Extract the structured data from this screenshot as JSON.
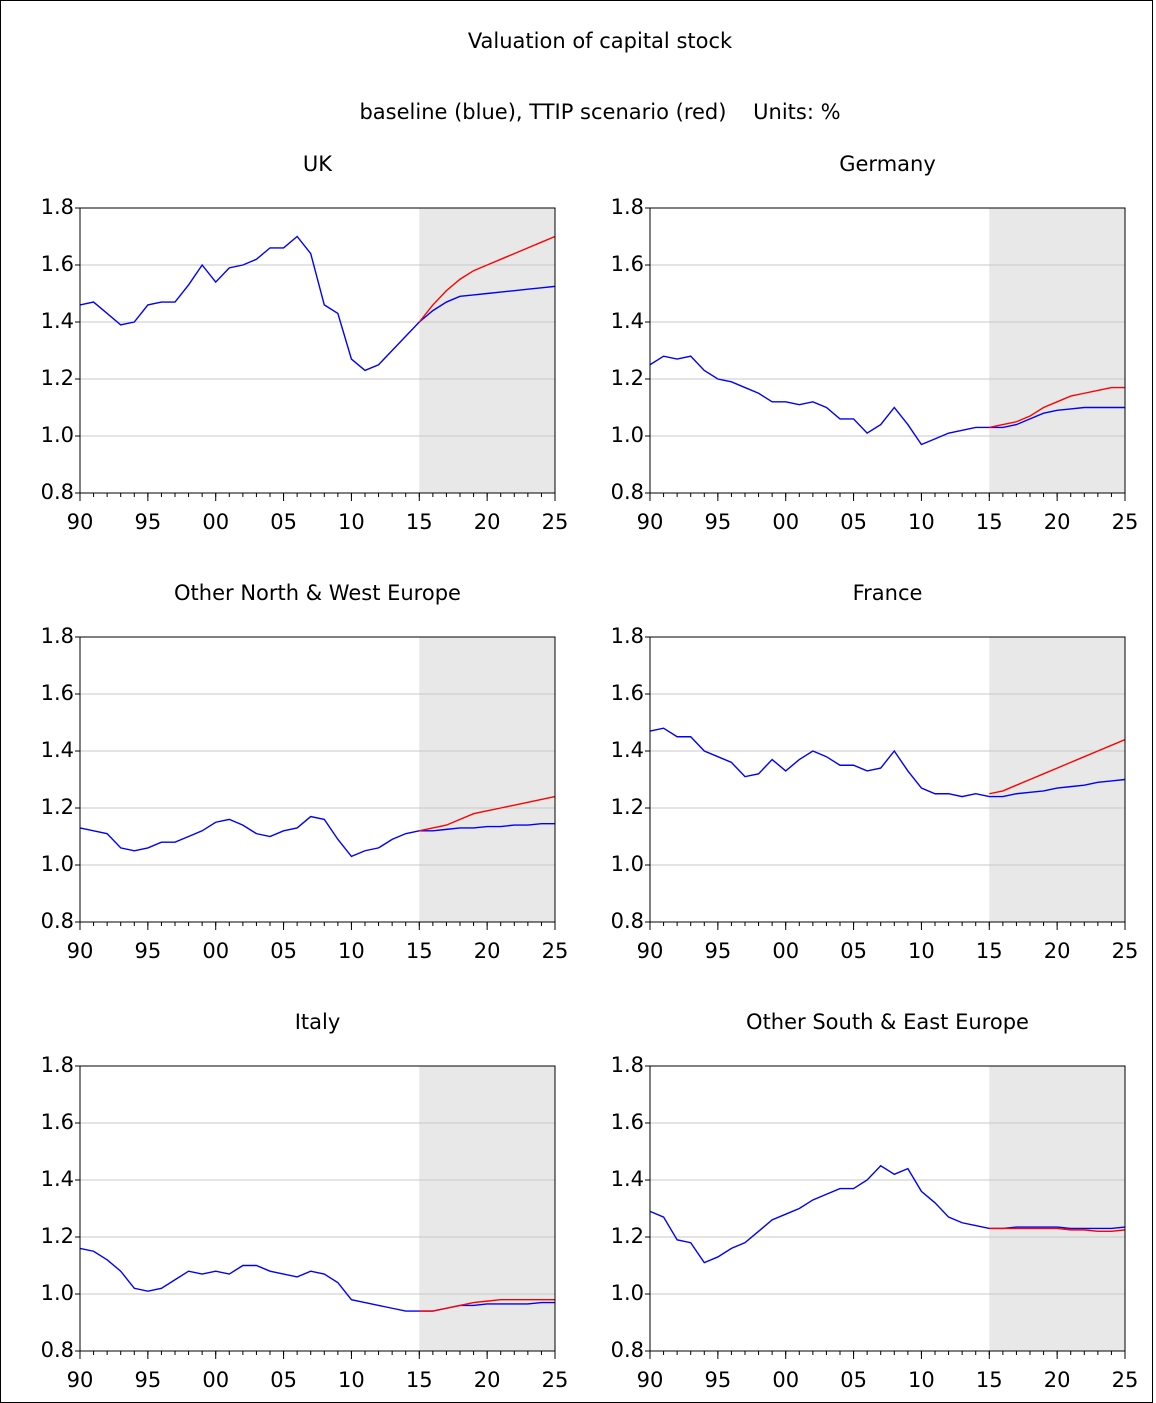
{
  "title": "Valuation of capital stock",
  "subtitle": "baseline (blue), TTIP scenario (red)    Units: %",
  "chart_data": [
    {
      "type": "line",
      "title": "UK",
      "x": [
        1990,
        1991,
        1992,
        1993,
        1994,
        1995,
        1996,
        1997,
        1998,
        1999,
        2000,
        2001,
        2002,
        2003,
        2004,
        2005,
        2006,
        2007,
        2008,
        2009,
        2010,
        2011,
        2012,
        2013,
        2014,
        2015,
        2016,
        2017,
        2018,
        2019,
        2020,
        2021,
        2022,
        2023,
        2024,
        2025
      ],
      "series": [
        {
          "color": "#0000ff",
          "values": [
            1.46,
            1.47,
            1.43,
            1.39,
            1.4,
            1.46,
            1.47,
            1.47,
            1.53,
            1.6,
            1.54,
            1.59,
            1.6,
            1.62,
            1.66,
            1.66,
            1.7,
            1.64,
            1.46,
            1.43,
            1.27,
            1.23,
            1.25,
            1.3,
            1.35,
            1.4,
            1.44,
            1.47,
            1.49,
            1.495,
            1.5,
            1.505,
            1.51,
            1.515,
            1.52,
            1.525
          ]
        },
        {
          "color": "#ff0000",
          "values": [
            null,
            null,
            null,
            null,
            null,
            null,
            null,
            null,
            null,
            null,
            null,
            null,
            null,
            null,
            null,
            null,
            null,
            null,
            null,
            null,
            null,
            null,
            null,
            null,
            null,
            1.4,
            1.46,
            1.51,
            1.55,
            1.58,
            1.6,
            1.62,
            1.64,
            1.66,
            1.68,
            1.7
          ]
        }
      ],
      "xlim": [
        1990,
        2025
      ],
      "xticks": [
        {
          "value": 1990,
          "label": "90"
        },
        {
          "value": 1995,
          "label": "95"
        },
        {
          "value": 2000,
          "label": "00"
        },
        {
          "value": 2005,
          "label": "05"
        },
        {
          "value": 2010,
          "label": "10"
        },
        {
          "value": 2015,
          "label": "15"
        },
        {
          "value": 2020,
          "label": "20"
        },
        {
          "value": 2025,
          "label": "25"
        }
      ],
      "ylim": [
        0.8,
        1.8
      ],
      "yticks": [
        0.8,
        {
          "value": 1,
          "label": "1.0"
        },
        1.2,
        1.4,
        1.6,
        1.8
      ],
      "grid": true,
      "shaded_xlim": [
        2015,
        2025
      ],
      "shade_color": "#e8e8e8"
    },
    {
      "type": "line",
      "title": "Germany",
      "x": [
        1990,
        1991,
        1992,
        1993,
        1994,
        1995,
        1996,
        1997,
        1998,
        1999,
        2000,
        2001,
        2002,
        2003,
        2004,
        2005,
        2006,
        2007,
        2008,
        2009,
        2010,
        2011,
        2012,
        2013,
        2014,
        2015,
        2016,
        2017,
        2018,
        2019,
        2020,
        2021,
        2022,
        2023,
        2024,
        2025
      ],
      "series": [
        {
          "color": "#0000ff",
          "values": [
            1.25,
            1.28,
            1.27,
            1.28,
            1.23,
            1.2,
            1.19,
            1.17,
            1.15,
            1.12,
            1.12,
            1.11,
            1.12,
            1.1,
            1.06,
            1.06,
            1.01,
            1.04,
            1.1,
            1.04,
            0.97,
            0.99,
            1.01,
            1.02,
            1.03,
            1.03,
            1.03,
            1.04,
            1.06,
            1.08,
            1.09,
            1.095,
            1.1,
            1.1,
            1.1,
            1.1
          ]
        },
        {
          "color": "#ff0000",
          "values": [
            null,
            null,
            null,
            null,
            null,
            null,
            null,
            null,
            null,
            null,
            null,
            null,
            null,
            null,
            null,
            null,
            null,
            null,
            null,
            null,
            null,
            null,
            null,
            null,
            null,
            1.03,
            1.04,
            1.05,
            1.07,
            1.1,
            1.12,
            1.14,
            1.15,
            1.16,
            1.17,
            1.17
          ]
        }
      ],
      "xlim": [
        1990,
        2025
      ],
      "xticks": [
        {
          "value": 1990,
          "label": "90"
        },
        {
          "value": 1995,
          "label": "95"
        },
        {
          "value": 2000,
          "label": "00"
        },
        {
          "value": 2005,
          "label": "05"
        },
        {
          "value": 2010,
          "label": "10"
        },
        {
          "value": 2015,
          "label": "15"
        },
        {
          "value": 2020,
          "label": "20"
        },
        {
          "value": 2025,
          "label": "25"
        }
      ],
      "ylim": [
        0.8,
        1.8
      ],
      "yticks": [
        0.8,
        {
          "value": 1,
          "label": "1.0"
        },
        1.2,
        1.4,
        1.6,
        1.8
      ],
      "grid": true,
      "shaded_xlim": [
        2015,
        2025
      ],
      "shade_color": "#e8e8e8"
    },
    {
      "type": "line",
      "title": "Other North & West Europe",
      "x": [
        1990,
        1991,
        1992,
        1993,
        1994,
        1995,
        1996,
        1997,
        1998,
        1999,
        2000,
        2001,
        2002,
        2003,
        2004,
        2005,
        2006,
        2007,
        2008,
        2009,
        2010,
        2011,
        2012,
        2013,
        2014,
        2015,
        2016,
        2017,
        2018,
        2019,
        2020,
        2021,
        2022,
        2023,
        2024,
        2025
      ],
      "series": [
        {
          "color": "#0000ff",
          "values": [
            1.13,
            1.12,
            1.11,
            1.06,
            1.05,
            1.06,
            1.08,
            1.08,
            1.1,
            1.12,
            1.15,
            1.16,
            1.14,
            1.11,
            1.1,
            1.12,
            1.13,
            1.17,
            1.16,
            1.09,
            1.03,
            1.05,
            1.06,
            1.09,
            1.11,
            1.12,
            1.12,
            1.125,
            1.13,
            1.13,
            1.135,
            1.135,
            1.14,
            1.14,
            1.145,
            1.145
          ]
        },
        {
          "color": "#ff0000",
          "values": [
            null,
            null,
            null,
            null,
            null,
            null,
            null,
            null,
            null,
            null,
            null,
            null,
            null,
            null,
            null,
            null,
            null,
            null,
            null,
            null,
            null,
            null,
            null,
            null,
            null,
            1.12,
            1.13,
            1.14,
            1.16,
            1.18,
            1.19,
            1.2,
            1.21,
            1.22,
            1.23,
            1.24
          ]
        }
      ],
      "xlim": [
        1990,
        2025
      ],
      "xticks": [
        {
          "value": 1990,
          "label": "90"
        },
        {
          "value": 1995,
          "label": "95"
        },
        {
          "value": 2000,
          "label": "00"
        },
        {
          "value": 2005,
          "label": "05"
        },
        {
          "value": 2010,
          "label": "10"
        },
        {
          "value": 2015,
          "label": "15"
        },
        {
          "value": 2020,
          "label": "20"
        },
        {
          "value": 2025,
          "label": "25"
        }
      ],
      "ylim": [
        0.8,
        1.8
      ],
      "yticks": [
        0.8,
        {
          "value": 1,
          "label": "1.0"
        },
        1.2,
        1.4,
        1.6,
        1.8
      ],
      "grid": true,
      "shaded_xlim": [
        2015,
        2025
      ],
      "shade_color": "#e8e8e8"
    },
    {
      "type": "line",
      "title": "France",
      "x": [
        1990,
        1991,
        1992,
        1993,
        1994,
        1995,
        1996,
        1997,
        1998,
        1999,
        2000,
        2001,
        2002,
        2003,
        2004,
        2005,
        2006,
        2007,
        2008,
        2009,
        2010,
        2011,
        2012,
        2013,
        2014,
        2015,
        2016,
        2017,
        2018,
        2019,
        2020,
        2021,
        2022,
        2023,
        2024,
        2025
      ],
      "series": [
        {
          "color": "#0000ff",
          "values": [
            1.47,
            1.48,
            1.45,
            1.45,
            1.4,
            1.38,
            1.36,
            1.31,
            1.32,
            1.37,
            1.33,
            1.37,
            1.4,
            1.38,
            1.35,
            1.35,
            1.33,
            1.34,
            1.4,
            1.33,
            1.27,
            1.25,
            1.25,
            1.24,
            1.25,
            1.24,
            1.24,
            1.25,
            1.255,
            1.26,
            1.27,
            1.275,
            1.28,
            1.29,
            1.295,
            1.3
          ]
        },
        {
          "color": "#ff0000",
          "values": [
            null,
            null,
            null,
            null,
            null,
            null,
            null,
            null,
            null,
            null,
            null,
            null,
            null,
            null,
            null,
            null,
            null,
            null,
            null,
            null,
            null,
            null,
            null,
            null,
            null,
            1.25,
            1.26,
            1.28,
            1.3,
            1.32,
            1.34,
            1.36,
            1.38,
            1.4,
            1.42,
            1.44
          ]
        }
      ],
      "xlim": [
        1990,
        2025
      ],
      "xticks": [
        {
          "value": 1990,
          "label": "90"
        },
        {
          "value": 1995,
          "label": "95"
        },
        {
          "value": 2000,
          "label": "00"
        },
        {
          "value": 2005,
          "label": "05"
        },
        {
          "value": 2010,
          "label": "10"
        },
        {
          "value": 2015,
          "label": "15"
        },
        {
          "value": 2020,
          "label": "20"
        },
        {
          "value": 2025,
          "label": "25"
        }
      ],
      "ylim": [
        0.8,
        1.8
      ],
      "yticks": [
        0.8,
        {
          "value": 1,
          "label": "1.0"
        },
        1.2,
        1.4,
        1.6,
        1.8
      ],
      "grid": true,
      "shaded_xlim": [
        2015,
        2025
      ],
      "shade_color": "#e8e8e8"
    },
    {
      "type": "line",
      "title": "Italy",
      "x": [
        1990,
        1991,
        1992,
        1993,
        1994,
        1995,
        1996,
        1997,
        1998,
        1999,
        2000,
        2001,
        2002,
        2003,
        2004,
        2005,
        2006,
        2007,
        2008,
        2009,
        2010,
        2011,
        2012,
        2013,
        2014,
        2015,
        2016,
        2017,
        2018,
        2019,
        2020,
        2021,
        2022,
        2023,
        2024,
        2025
      ],
      "series": [
        {
          "color": "#0000ff",
          "values": [
            1.16,
            1.15,
            1.12,
            1.08,
            1.02,
            1.01,
            1.02,
            1.05,
            1.08,
            1.07,
            1.08,
            1.07,
            1.1,
            1.1,
            1.08,
            1.07,
            1.06,
            1.08,
            1.07,
            1.04,
            0.98,
            0.97,
            0.96,
            0.95,
            0.94,
            0.94,
            0.94,
            0.95,
            0.96,
            0.96,
            0.965,
            0.965,
            0.965,
            0.965,
            0.97,
            0.97
          ]
        },
        {
          "color": "#ff0000",
          "values": [
            null,
            null,
            null,
            null,
            null,
            null,
            null,
            null,
            null,
            null,
            null,
            null,
            null,
            null,
            null,
            null,
            null,
            null,
            null,
            null,
            null,
            null,
            null,
            null,
            null,
            0.94,
            0.94,
            0.95,
            0.96,
            0.97,
            0.975,
            0.98,
            0.98,
            0.98,
            0.98,
            0.98
          ]
        }
      ],
      "xlim": [
        1990,
        2025
      ],
      "xticks": [
        {
          "value": 1990,
          "label": "90"
        },
        {
          "value": 1995,
          "label": "95"
        },
        {
          "value": 2000,
          "label": "00"
        },
        {
          "value": 2005,
          "label": "05"
        },
        {
          "value": 2010,
          "label": "10"
        },
        {
          "value": 2015,
          "label": "15"
        },
        {
          "value": 2020,
          "label": "20"
        },
        {
          "value": 2025,
          "label": "25"
        }
      ],
      "ylim": [
        0.8,
        1.8
      ],
      "yticks": [
        0.8,
        {
          "value": 1,
          "label": "1.0"
        },
        1.2,
        1.4,
        1.6,
        1.8
      ],
      "grid": true,
      "shaded_xlim": [
        2015,
        2025
      ],
      "shade_color": "#e8e8e8"
    },
    {
      "type": "line",
      "title": "Other South & East Europe",
      "x": [
        1990,
        1991,
        1992,
        1993,
        1994,
        1995,
        1996,
        1997,
        1998,
        1999,
        2000,
        2001,
        2002,
        2003,
        2004,
        2005,
        2006,
        2007,
        2008,
        2009,
        2010,
        2011,
        2012,
        2013,
        2014,
        2015,
        2016,
        2017,
        2018,
        2019,
        2020,
        2021,
        2022,
        2023,
        2024,
        2025
      ],
      "series": [
        {
          "color": "#0000ff",
          "values": [
            1.29,
            1.27,
            1.19,
            1.18,
            1.11,
            1.13,
            1.16,
            1.18,
            1.22,
            1.26,
            1.28,
            1.3,
            1.33,
            1.35,
            1.37,
            1.37,
            1.4,
            1.45,
            1.42,
            1.44,
            1.36,
            1.32,
            1.27,
            1.25,
            1.24,
            1.23,
            1.23,
            1.235,
            1.235,
            1.235,
            1.235,
            1.23,
            1.23,
            1.23,
            1.23,
            1.235
          ]
        },
        {
          "color": "#ff0000",
          "values": [
            null,
            null,
            null,
            null,
            null,
            null,
            null,
            null,
            null,
            null,
            null,
            null,
            null,
            null,
            null,
            null,
            null,
            null,
            null,
            null,
            null,
            null,
            null,
            null,
            null,
            1.23,
            1.23,
            1.23,
            1.23,
            1.23,
            1.23,
            1.225,
            1.225,
            1.22,
            1.22,
            1.225
          ]
        }
      ],
      "xlim": [
        1990,
        2025
      ],
      "xticks": [
        {
          "value": 1990,
          "label": "90"
        },
        {
          "value": 1995,
          "label": "95"
        },
        {
          "value": 2000,
          "label": "00"
        },
        {
          "value": 2005,
          "label": "05"
        },
        {
          "value": 2010,
          "label": "10"
        },
        {
          "value": 2015,
          "label": "15"
        },
        {
          "value": 2020,
          "label": "20"
        },
        {
          "value": 2025,
          "label": "25"
        }
      ],
      "ylim": [
        0.8,
        1.8
      ],
      "yticks": [
        0.8,
        {
          "value": 1,
          "label": "1.0"
        },
        1.2,
        1.4,
        1.6,
        1.8
      ],
      "grid": true,
      "shaded_xlim": [
        2015,
        2025
      ],
      "shade_color": "#e8e8e8"
    }
  ]
}
